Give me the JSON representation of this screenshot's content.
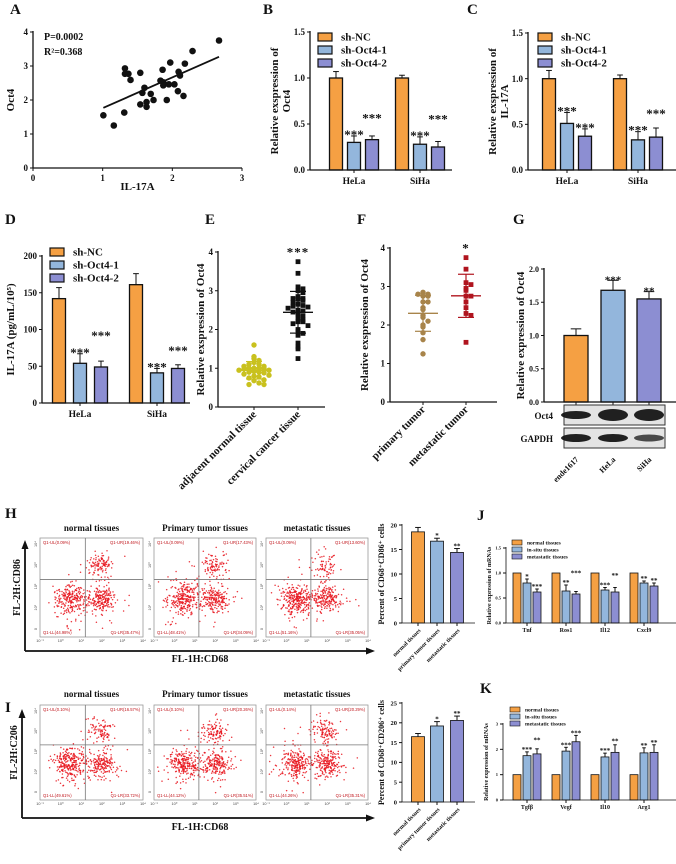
{
  "colors": {
    "orange": "#F5A043",
    "blue": "#93B6DC",
    "purple": "#8C8ED2",
    "yellow": "#C9C11E",
    "black": "#111111",
    "brown": "#A8844A",
    "red": "#B0141E",
    "flow": "#E8141C"
  },
  "chart_data": [
    {
      "panel": "A",
      "type": "scatter",
      "xlabel": "IL-17A",
      "ylabel": "Oct4",
      "xlim": [
        0,
        3
      ],
      "ylim": [
        0,
        4
      ],
      "xticks": [
        0,
        1,
        2,
        3
      ],
      "xtick_labels": [
        "0",
        "1",
        "2",
        "3"
      ],
      "yticks": [
        0,
        1,
        2,
        3,
        4
      ],
      "ytick_labels": [
        "0",
        "1",
        "2",
        "3",
        "4"
      ],
      "annotations": [
        "P=0.0002",
        "R²=0.368"
      ],
      "x": [
        1.01,
        1.16,
        1.31,
        1.32,
        1.32,
        1.37,
        1.4,
        1.54,
        1.54,
        1.57,
        1.6,
        1.63,
        1.63,
        1.69,
        1.73,
        1.83,
        1.86,
        1.87,
        1.87,
        1.92,
        1.95,
        1.97,
        2.03,
        2.08,
        2.09,
        2.11,
        2.16,
        2.18,
        2.29,
        2.67
      ],
      "y": [
        1.55,
        1.25,
        1.63,
        2.93,
        2.77,
        2.77,
        2.59,
        2.8,
        1.87,
        2.21,
        2.36,
        1.94,
        1.8,
        2.18,
        2.0,
        2.57,
        2.89,
        2.52,
        2.43,
        2.0,
        2.46,
        3.1,
        2.46,
        2.26,
        2.83,
        2.72,
        2.12,
        3.07,
        3.44,
        3.75
      ],
      "regression": {
        "x": [
          1.01,
          2.67
        ],
        "y": [
          1.77,
          3.27
        ]
      }
    },
    {
      "panel": "B",
      "type": "bar",
      "categories": [
        "HeLa",
        "SiHa"
      ],
      "ylabel_lines": [
        "Relative exspression of",
        "Oct4"
      ],
      "ylim": [
        0,
        1.5
      ],
      "yticks": [
        0,
        0.5,
        1,
        1.5
      ],
      "ytick_labels": [
        "0.0",
        "0.5",
        "1.0",
        "1.5"
      ],
      "series": [
        {
          "name": "sh-NC",
          "color": "#F5A043",
          "values": [
            1.0,
            1.0
          ],
          "errors": [
            0.07,
            0.03
          ],
          "sig": [
            "",
            ""
          ]
        },
        {
          "name": "sh-Oct4-1",
          "color": "#93B6DC",
          "values": [
            0.3,
            0.28
          ],
          "errors": [
            0.07,
            0.08
          ],
          "sig": [
            "***",
            "***"
          ]
        },
        {
          "name": "sh-Oct4-2",
          "color": "#8C8ED2",
          "values": [
            0.33,
            0.25
          ],
          "errors": [
            0.04,
            0.06
          ],
          "sig": [
            "***",
            "***"
          ]
        }
      ]
    },
    {
      "panel": "C",
      "type": "bar",
      "categories": [
        "HeLa",
        "SiHa"
      ],
      "ylabel_lines": [
        "Relative exspression of",
        "IL-17A"
      ],
      "ylim": [
        0,
        1.5
      ],
      "yticks": [
        0,
        0.5,
        1,
        1.5
      ],
      "ytick_labels": [
        "0.0",
        "0.5",
        "1.0",
        "1.5"
      ],
      "series": [
        {
          "name": "sh-NC",
          "color": "#F5A043",
          "values": [
            1.0,
            1.0
          ],
          "errors": [
            0.09,
            0.04
          ],
          "sig": [
            "",
            ""
          ]
        },
        {
          "name": "sh-Oct4-1",
          "color": "#93B6DC",
          "values": [
            0.51,
            0.33
          ],
          "errors": [
            0.12,
            0.09
          ],
          "sig": [
            "***",
            "***"
          ]
        },
        {
          "name": "sh-Oct4-2",
          "color": "#8C8ED2",
          "values": [
            0.37,
            0.36
          ],
          "errors": [
            0.08,
            0.1
          ],
          "sig": [
            "***",
            "***"
          ]
        }
      ]
    },
    {
      "panel": "D",
      "type": "bar",
      "categories": [
        "HeLa",
        "SiHa"
      ],
      "ylabel_lines": [
        "IL-17A (pg/mL/10⁵)"
      ],
      "ylim": [
        0,
        200
      ],
      "yticks": [
        0,
        50,
        100,
        150,
        200
      ],
      "ytick_labels": [
        "0",
        "50",
        "100",
        "150",
        "200"
      ],
      "series": [
        {
          "name": "sh-NC",
          "color": "#F5A043",
          "values": [
            142,
            161
          ],
          "errors": [
            15,
            15
          ],
          "sig": [
            "",
            ""
          ]
        },
        {
          "name": "sh-Oct4-1",
          "color": "#93B6DC",
          "values": [
            54,
            41
          ],
          "errors": [
            13,
            6
          ],
          "sig": [
            "***",
            "***"
          ]
        },
        {
          "name": "sh-Oct4-2",
          "color": "#8C8ED2",
          "values": [
            49,
            47
          ],
          "errors": [
            8,
            5
          ],
          "sig": [
            "***",
            "***"
          ]
        }
      ]
    },
    {
      "panel": "E",
      "type": "scatter",
      "subtype": "dot",
      "categories": [
        "adjacent normal tissue",
        "cervical cancer tissue"
      ],
      "ylabel_lines": [
        "Relative exspression of Oct4"
      ],
      "ylim": [
        0,
        4
      ],
      "yticks": [
        0,
        1,
        2,
        3,
        4
      ],
      "ytick_labels": [
        "0",
        "1",
        "2",
        "3",
        "4"
      ],
      "groups": [
        {
          "color": "#C9C11E",
          "marker": "circle",
          "sig": "",
          "values": [
            1.6,
            1.3,
            1.25,
            1.2,
            1.15,
            1.1,
            1.1,
            1.05,
            1.05,
            1.0,
            1.0,
            1.0,
            1.0,
            0.98,
            0.95,
            0.95,
            0.92,
            0.9,
            0.9,
            0.88,
            0.85,
            0.82,
            0.8,
            0.78,
            0.75,
            0.7,
            0.68,
            0.62,
            0.58,
            0.58
          ]
        },
        {
          "color": "#111111",
          "marker": "square",
          "sig": "***",
          "values": [
            3.75,
            3.45,
            3.1,
            3.05,
            3.0,
            2.95,
            2.85,
            2.8,
            2.8,
            2.78,
            2.75,
            2.7,
            2.65,
            2.62,
            2.6,
            2.58,
            2.55,
            2.5,
            2.48,
            2.45,
            2.4,
            2.35,
            2.3,
            2.25,
            2.2,
            2.2,
            2.15,
            2.1,
            2.0,
            1.95,
            1.9,
            1.85,
            1.65,
            1.55,
            1.5,
            1.25
          ]
        }
      ]
    },
    {
      "panel": "F",
      "type": "scatter",
      "subtype": "dot",
      "categories": [
        "primary tumor",
        "metastatic tumor"
      ],
      "ylabel_lines": [
        "Relative exspression of Oct4"
      ],
      "ylim": [
        0,
        4
      ],
      "yticks": [
        0,
        1,
        2,
        3,
        4
      ],
      "ytick_labels": [
        "0",
        "1",
        "2",
        "3",
        "4"
      ],
      "groups": [
        {
          "color": "#A8844A",
          "marker": "circle",
          "sig": "",
          "values": [
            2.85,
            2.8,
            2.8,
            2.75,
            2.75,
            2.6,
            2.6,
            2.45,
            2.25,
            2.2,
            2.1,
            2.0,
            1.95,
            1.8,
            1.62,
            1.25,
            2.4
          ]
        },
        {
          "color": "#B0141E",
          "marker": "square",
          "sig": "*",
          "values": [
            3.75,
            3.45,
            3.1,
            3.05,
            2.95,
            2.9,
            2.75,
            2.75,
            2.6,
            2.45,
            2.3,
            2.25,
            1.55
          ]
        }
      ]
    },
    {
      "panel": "G",
      "type": "bar",
      "categories": [
        "ende1617",
        "HeLa",
        "SiHa"
      ],
      "ylabel_lines": [
        "Relative expression of Oct4"
      ],
      "ylim": [
        0,
        2
      ],
      "yticks": [
        0,
        0.5,
        1,
        1.5,
        2
      ],
      "ytick_labels": [
        "0.0",
        "0.5",
        "1.0",
        "1.5",
        "2.0"
      ],
      "values": [
        1.0,
        1.68,
        1.55
      ],
      "errors": [
        0.1,
        0.15,
        0.11
      ],
      "sig": [
        "",
        "***",
        "**"
      ],
      "colors": [
        "#F5A043",
        "#93B6DC",
        "#8C8ED2"
      ],
      "blot_labels": [
        "Oct4",
        "GAPDH"
      ]
    },
    {
      "panel": "H",
      "type": "flow",
      "xlabel": "FL-1H:CD68",
      "ylabel": "FL-2H:CD86",
      "xtick_labels": [
        "10⁻¹",
        "10⁰",
        "10¹",
        "10²",
        "10³",
        "10⁴"
      ],
      "ytick_labels": [
        "0",
        "10¹",
        "10²",
        "10³",
        "10⁴"
      ],
      "plots": [
        {
          "title": "normal tissues",
          "quadrants": {
            "UL": "Q1-UL(0.09%)",
            "UR": "Q1-UR(19.46%)",
            "LL": "Q1-LL(44.98%)",
            "LR": "Q1-LR(35.47%)"
          },
          "pct": [
            0.09,
            19.46,
            44.98,
            35.47
          ]
        },
        {
          "title": "Primary tumor tissues",
          "quadrants": {
            "UL": "Q1-UL(0.09%)",
            "UR": "Q1-UR(17.43%)",
            "LL": "Q1-LL(48.41%)",
            "LR": "Q1-LR(34.09%)"
          },
          "pct": [
            0.09,
            17.43,
            48.41,
            34.09
          ]
        },
        {
          "title": "metastatic tissues",
          "quadrants": {
            "UL": "Q1-UL(0.09%)",
            "UR": "Q1-UR(13.60%)",
            "LL": "Q1-LL(51.16%)",
            "LR": "Q1-LR(35.05%)"
          },
          "pct": [
            0.09,
            13.6,
            51.16,
            35.05
          ]
        }
      ]
    },
    {
      "panel": "",
      "type": "bar",
      "categories": [
        "normal tissues",
        "primary tumor tissues",
        "metastatic tissues"
      ],
      "ylabel_lines": [
        "Percent of CD68⁺CD86⁺ cells"
      ],
      "ylim": [
        0,
        20
      ],
      "yticks": [
        0,
        5,
        10,
        15,
        20
      ],
      "ytick_labels": [
        "0",
        "5",
        "10",
        "15",
        "20"
      ],
      "values": [
        18.6,
        16.7,
        14.4
      ],
      "errors": [
        0.9,
        0.6,
        0.8
      ],
      "sig": [
        "",
        "*",
        "**"
      ],
      "colors": [
        "#F5A043",
        "#93B6DC",
        "#8C8ED2"
      ]
    },
    {
      "panel": "J",
      "type": "bar",
      "categories": [
        "Tnf",
        "Ros1",
        "Il12",
        "Cxcl9"
      ],
      "ylabel_lines": [
        "Relative expression of mRNAs"
      ],
      "ylim": [
        0,
        1.5
      ],
      "yticks": [
        0,
        0.5,
        1,
        1.5
      ],
      "ytick_labels": [
        "0.0",
        "0.5",
        "1.0",
        "1.5"
      ],
      "series": [
        {
          "name": "normal tissues",
          "color": "#F5A043",
          "values": [
            1,
            1,
            1,
            1
          ],
          "errors": [
            0,
            0,
            0,
            0
          ],
          "sig": [
            "",
            "",
            "",
            ""
          ]
        },
        {
          "name": "in-situ tissues",
          "color": "#93B6DC",
          "values": [
            0.8,
            0.64,
            0.66,
            0.8
          ],
          "errors": [
            0.08,
            0.12,
            0.05,
            0.04
          ],
          "sig": [
            "*",
            "**",
            "***",
            "**"
          ]
        },
        {
          "name": "metastatic tissues",
          "color": "#8C8ED2",
          "values": [
            0.62,
            0.58,
            0.62,
            0.74
          ],
          "errors": [
            0.06,
            0.05,
            0.09,
            0.06
          ],
          "sig": [
            "***",
            "***",
            "**",
            "**"
          ]
        }
      ]
    },
    {
      "panel": "I",
      "type": "flow",
      "xlabel": "FL-1H:CD68",
      "ylabel": "FL-2H:C206",
      "xtick_labels": [
        "10⁻¹",
        "10⁰",
        "10¹",
        "10²",
        "10³",
        "10⁴"
      ],
      "ytick_labels": [
        "0",
        "10¹",
        "10²",
        "10³",
        "10⁴"
      ],
      "plots": [
        {
          "title": "normal tissues",
          "quadrants": {
            "UL": "Q1-UL(0.10%)",
            "UR": "Q1-UR(16.57%)",
            "LL": "Q1-LL(49.61%)",
            "LR": "Q1-LR(33.72%)"
          },
          "pct": [
            0.1,
            16.57,
            49.61,
            33.72
          ]
        },
        {
          "title": "Primary tumor tissues",
          "quadrants": {
            "UL": "Q1-UL(0.10%)",
            "UR": "Q1-UR(20.26%)",
            "LL": "Q1-LL(44.12%)",
            "LR": "Q1-LR(35.51%)"
          },
          "pct": [
            0.1,
            20.26,
            44.12,
            35.51
          ]
        },
        {
          "title": "metastatic tissues",
          "quadrants": {
            "UL": "Q1-UL(0.14%)",
            "UR": "Q1-UR(20.29%)",
            "LL": "Q1-LL(44.26%)",
            "LR": "Q1-LR(35.31%)"
          },
          "pct": [
            0.14,
            20.29,
            44.26,
            35.31
          ]
        }
      ]
    },
    {
      "panel": "",
      "type": "bar",
      "categories": [
        "normal tissues",
        "primary tumor tissues",
        "metastatic tissues"
      ],
      "ylabel_lines": [
        "Percent of CD68⁺CD206⁺ cells"
      ],
      "ylim": [
        0,
        25
      ],
      "yticks": [
        0,
        5,
        10,
        15,
        20,
        25
      ],
      "ytick_labels": [
        "0",
        "5",
        "10",
        "15",
        "20",
        "25"
      ],
      "values": [
        16.5,
        19.2,
        20.6
      ],
      "errors": [
        0.8,
        1.1,
        1.1
      ],
      "sig": [
        "",
        "*",
        "**"
      ],
      "colors": [
        "#F5A043",
        "#93B6DC",
        "#8C8ED2"
      ]
    },
    {
      "panel": "K",
      "type": "bar",
      "categories": [
        "Tgfβ",
        "Vegf",
        "Il10",
        "Arg1"
      ],
      "ylabel_lines": [
        "Relative expression of mRNAs"
      ],
      "ylim": [
        0,
        3
      ],
      "yticks": [
        0,
        1,
        2,
        3
      ],
      "ytick_labels": [
        "0",
        "1",
        "2",
        "3"
      ],
      "series": [
        {
          "name": "normal tissues",
          "color": "#F5A043",
          "values": [
            1,
            1,
            1,
            1
          ],
          "errors": [
            0,
            0,
            0,
            0
          ],
          "sig": [
            "",
            "",
            "",
            ""
          ]
        },
        {
          "name": "in-situ tissues",
          "color": "#93B6DC",
          "values": [
            1.75,
            1.93,
            1.7,
            1.86
          ],
          "errors": [
            0.15,
            0.15,
            0.15,
            0.2
          ],
          "sig": [
            "***",
            "***",
            "***",
            "**"
          ]
        },
        {
          "name": "metastatic tissues",
          "color": "#8C8ED2",
          "values": [
            1.82,
            2.3,
            1.88,
            1.88
          ],
          "errors": [
            0.2,
            0.25,
            0.3,
            0.3
          ],
          "sig": [
            "**",
            "***",
            "**",
            "**"
          ]
        }
      ]
    }
  ]
}
